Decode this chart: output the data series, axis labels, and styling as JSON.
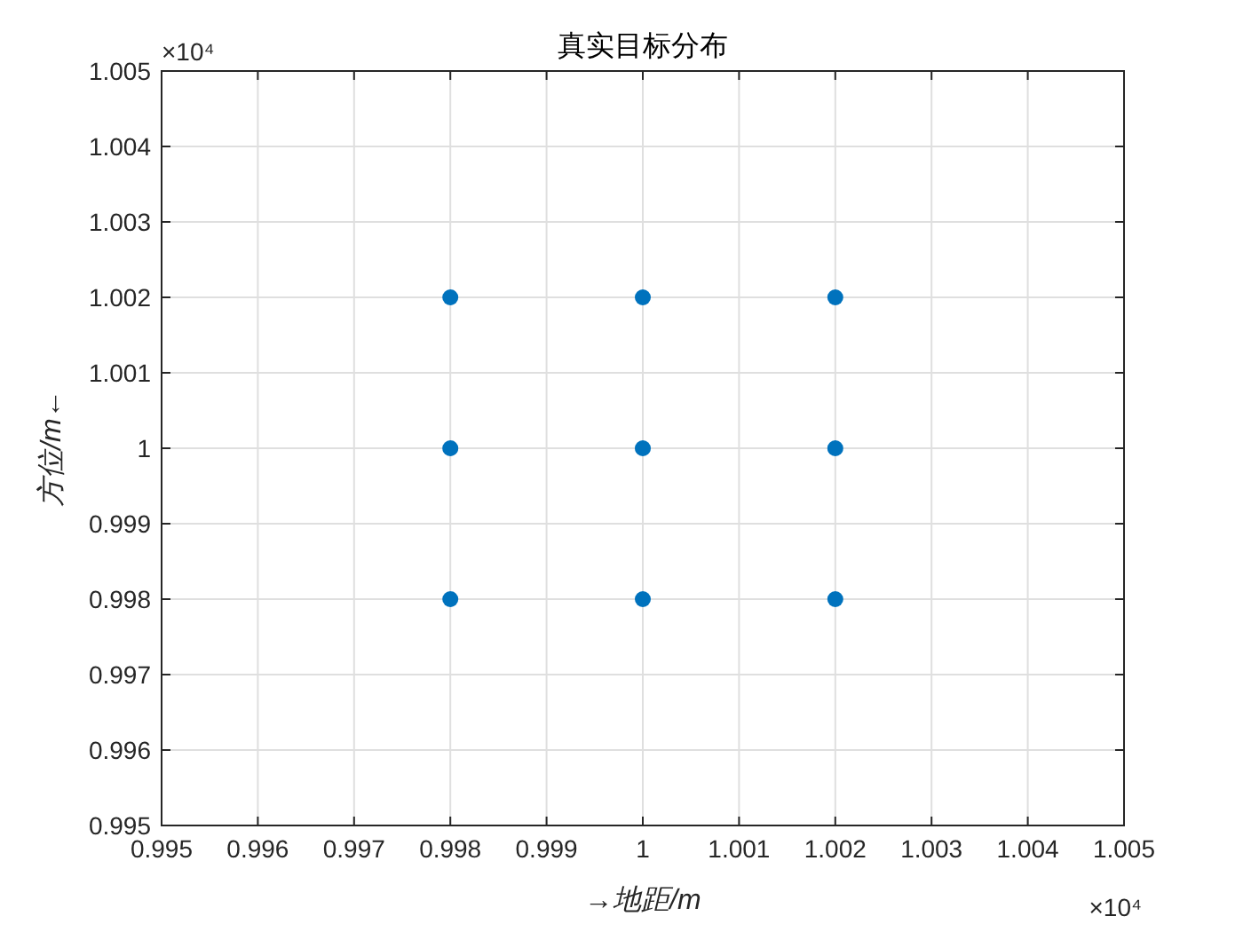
{
  "chart_data": {
    "type": "scatter",
    "title": "真实目标分布",
    "xlabel": "→地距/m",
    "ylabel": "方位/m←",
    "x": [
      0.998,
      1,
      1.002,
      0.998,
      1,
      1.002,
      0.998,
      1,
      1.002
    ],
    "series": [
      {
        "color": "#0072bd",
        "values": [
          1.002,
          1.002,
          1.002,
          1,
          1,
          1,
          0.998,
          0.998,
          0.998
        ]
      }
    ],
    "xlim": [
      0.995,
      1.005
    ],
    "ylim": [
      0.995,
      1.005
    ],
    "xticks": [
      0.995,
      0.996,
      0.997,
      0.998,
      0.999,
      1,
      1.001,
      1.002,
      1.003,
      1.004,
      1.005
    ],
    "yticks": [
      0.995,
      0.996,
      0.997,
      0.998,
      0.999,
      1,
      1.001,
      1.002,
      1.003,
      1.004,
      1.005
    ],
    "grid": true,
    "marker": "circle",
    "annotations": [
      "×10⁴",
      "×10⁴"
    ]
  }
}
